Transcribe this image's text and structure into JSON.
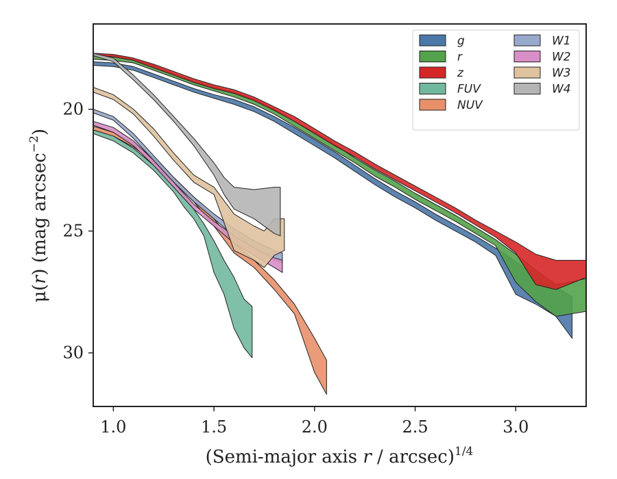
{
  "chart_data": {
    "type": "area",
    "xlabel": "(Semi-major axis r / arcsec)",
    "xlabel_pre": "(Semi-major axis ",
    "xlabel_var": "r",
    "xlabel_post": " / arcsec)",
    "xlabel_sup": "1/4",
    "ylabel_pre": "μ(",
    "ylabel_var": "r",
    "ylabel_post": ") (mag arcsec",
    "ylabel_sup": "−2",
    "ylabel_end": ")",
    "xlim": [
      0.9,
      3.35
    ],
    "ylim": [
      32.2,
      16.5
    ],
    "y_inverted": true,
    "xticks": [
      1.0,
      1.5,
      2.0,
      2.5,
      3.0
    ],
    "xtick_labels": [
      "1.0",
      "1.5",
      "2.0",
      "2.5",
      "3.0"
    ],
    "yticks": [
      20,
      25,
      30
    ],
    "ytick_labels": [
      "20",
      "25",
      "30"
    ],
    "grid": false,
    "legend_position": "top-right",
    "legend_columns": 2,
    "series": [
      {
        "name": "g",
        "color": "#4c78a8",
        "upper": [
          [
            0.9,
            18.05
          ],
          [
            1.0,
            18.1
          ],
          [
            1.1,
            18.25
          ],
          [
            1.2,
            18.55
          ],
          [
            1.3,
            18.85
          ],
          [
            1.4,
            19.15
          ],
          [
            1.5,
            19.4
          ],
          [
            1.6,
            19.6
          ],
          [
            1.7,
            19.9
          ],
          [
            1.8,
            20.3
          ],
          [
            1.9,
            20.75
          ],
          [
            2.0,
            21.25
          ],
          [
            2.1,
            21.75
          ],
          [
            2.2,
            22.3
          ],
          [
            2.3,
            22.85
          ],
          [
            2.4,
            23.35
          ],
          [
            2.5,
            23.8
          ],
          [
            2.6,
            24.3
          ],
          [
            2.7,
            24.75
          ],
          [
            2.8,
            25.2
          ],
          [
            2.9,
            25.7
          ],
          [
            3.0,
            26.25
          ],
          [
            3.1,
            26.9
          ],
          [
            3.2,
            27.3
          ],
          [
            3.28,
            27.7
          ]
        ],
        "lower": [
          [
            0.9,
            18.2
          ],
          [
            1.0,
            18.25
          ],
          [
            1.1,
            18.4
          ],
          [
            1.2,
            18.7
          ],
          [
            1.3,
            19.0
          ],
          [
            1.4,
            19.3
          ],
          [
            1.5,
            19.55
          ],
          [
            1.6,
            19.8
          ],
          [
            1.7,
            20.1
          ],
          [
            1.8,
            20.5
          ],
          [
            1.9,
            21.0
          ],
          [
            2.0,
            21.5
          ],
          [
            2.1,
            22.0
          ],
          [
            2.2,
            22.55
          ],
          [
            2.3,
            23.1
          ],
          [
            2.4,
            23.6
          ],
          [
            2.5,
            24.05
          ],
          [
            2.6,
            24.55
          ],
          [
            2.7,
            25.0
          ],
          [
            2.8,
            25.45
          ],
          [
            2.9,
            26.0
          ],
          [
            3.0,
            27.6
          ],
          [
            3.1,
            28.0
          ],
          [
            3.2,
            28.5
          ],
          [
            3.28,
            29.4
          ]
        ]
      },
      {
        "name": "r",
        "color": "#54a24b",
        "upper": [
          [
            0.9,
            17.75
          ],
          [
            1.0,
            17.8
          ],
          [
            1.1,
            17.95
          ],
          [
            1.2,
            18.2
          ],
          [
            1.3,
            18.55
          ],
          [
            1.4,
            18.85
          ],
          [
            1.5,
            19.1
          ],
          [
            1.6,
            19.3
          ],
          [
            1.7,
            19.6
          ],
          [
            1.8,
            20.0
          ],
          [
            1.9,
            20.5
          ],
          [
            2.0,
            20.95
          ],
          [
            2.1,
            21.45
          ],
          [
            2.2,
            22.0
          ],
          [
            2.3,
            22.5
          ],
          [
            2.4,
            22.95
          ],
          [
            2.5,
            23.45
          ],
          [
            2.6,
            23.9
          ],
          [
            2.7,
            24.35
          ],
          [
            2.8,
            24.85
          ],
          [
            2.9,
            25.35
          ],
          [
            3.0,
            25.95
          ],
          [
            3.1,
            26.6
          ],
          [
            3.2,
            27.2
          ],
          [
            3.35,
            26.95
          ]
        ],
        "lower": [
          [
            0.9,
            17.95
          ],
          [
            1.0,
            18.0
          ],
          [
            1.1,
            18.1
          ],
          [
            1.2,
            18.4
          ],
          [
            1.3,
            18.7
          ],
          [
            1.4,
            19.0
          ],
          [
            1.5,
            19.25
          ],
          [
            1.6,
            19.5
          ],
          [
            1.7,
            19.8
          ],
          [
            1.8,
            20.2
          ],
          [
            1.9,
            20.7
          ],
          [
            2.0,
            21.2
          ],
          [
            2.1,
            21.7
          ],
          [
            2.2,
            22.2
          ],
          [
            2.3,
            22.75
          ],
          [
            2.4,
            23.2
          ],
          [
            2.5,
            23.7
          ],
          [
            2.6,
            24.15
          ],
          [
            2.7,
            24.6
          ],
          [
            2.8,
            25.1
          ],
          [
            2.9,
            25.6
          ],
          [
            3.0,
            27.1
          ],
          [
            3.1,
            27.9
          ],
          [
            3.2,
            28.5
          ],
          [
            3.35,
            28.3
          ]
        ]
      },
      {
        "name": "z",
        "color": "#d62728",
        "upper": [
          [
            0.9,
            17.7
          ],
          [
            1.0,
            17.75
          ],
          [
            1.1,
            17.9
          ],
          [
            1.2,
            18.15
          ],
          [
            1.3,
            18.45
          ],
          [
            1.4,
            18.75
          ],
          [
            1.5,
            19.0
          ],
          [
            1.6,
            19.2
          ],
          [
            1.7,
            19.5
          ],
          [
            1.8,
            19.9
          ],
          [
            1.9,
            20.3
          ],
          [
            2.0,
            20.8
          ],
          [
            2.1,
            21.3
          ],
          [
            2.2,
            21.75
          ],
          [
            2.3,
            22.25
          ],
          [
            2.4,
            22.7
          ],
          [
            2.5,
            23.15
          ],
          [
            2.6,
            23.6
          ],
          [
            2.7,
            24.05
          ],
          [
            2.8,
            24.55
          ],
          [
            2.9,
            25.0
          ],
          [
            3.0,
            25.45
          ],
          [
            3.1,
            25.95
          ],
          [
            3.2,
            26.2
          ],
          [
            3.35,
            26.2
          ]
        ],
        "lower": [
          [
            0.9,
            17.8
          ],
          [
            1.0,
            17.85
          ],
          [
            1.1,
            18.0
          ],
          [
            1.2,
            18.3
          ],
          [
            1.3,
            18.6
          ],
          [
            1.4,
            18.9
          ],
          [
            1.5,
            19.15
          ],
          [
            1.6,
            19.35
          ],
          [
            1.7,
            19.65
          ],
          [
            1.8,
            20.05
          ],
          [
            1.9,
            20.5
          ],
          [
            2.0,
            21.0
          ],
          [
            2.1,
            21.5
          ],
          [
            2.2,
            21.95
          ],
          [
            2.3,
            22.45
          ],
          [
            2.4,
            22.9
          ],
          [
            2.5,
            23.35
          ],
          [
            2.6,
            23.8
          ],
          [
            2.7,
            24.25
          ],
          [
            2.8,
            24.75
          ],
          [
            2.9,
            25.25
          ],
          [
            3.0,
            25.9
          ],
          [
            3.1,
            27.2
          ],
          [
            3.2,
            27.4
          ],
          [
            3.35,
            26.9
          ]
        ]
      },
      {
        "name": "FUV",
        "color": "#72b89f",
        "upper": [
          [
            0.9,
            20.85
          ],
          [
            1.0,
            21.1
          ],
          [
            1.1,
            21.6
          ],
          [
            1.2,
            22.3
          ],
          [
            1.3,
            23.0
          ],
          [
            1.35,
            23.5
          ],
          [
            1.4,
            24.1
          ],
          [
            1.45,
            24.7
          ],
          [
            1.5,
            25.4
          ],
          [
            1.55,
            26.2
          ],
          [
            1.6,
            26.9
          ],
          [
            1.65,
            27.8
          ],
          [
            1.69,
            28.1
          ]
        ],
        "lower": [
          [
            0.9,
            21.0
          ],
          [
            1.0,
            21.3
          ],
          [
            1.1,
            21.8
          ],
          [
            1.2,
            22.5
          ],
          [
            1.3,
            23.4
          ],
          [
            1.35,
            24.0
          ],
          [
            1.4,
            24.5
          ],
          [
            1.45,
            25.2
          ],
          [
            1.5,
            26.7
          ],
          [
            1.55,
            27.6
          ],
          [
            1.6,
            29.0
          ],
          [
            1.65,
            29.8
          ],
          [
            1.69,
            30.2
          ]
        ]
      },
      {
        "name": "NUV",
        "color": "#e8906a",
        "upper": [
          [
            0.9,
            20.7
          ],
          [
            1.0,
            20.95
          ],
          [
            1.1,
            21.4
          ],
          [
            1.2,
            22.0
          ],
          [
            1.3,
            22.8
          ],
          [
            1.4,
            23.6
          ],
          [
            1.5,
            24.5
          ],
          [
            1.6,
            25.5
          ],
          [
            1.7,
            26.2
          ],
          [
            1.8,
            27.0
          ],
          [
            1.9,
            28.0
          ],
          [
            2.0,
            29.4
          ],
          [
            2.06,
            30.3
          ]
        ],
        "lower": [
          [
            0.9,
            20.85
          ],
          [
            1.0,
            21.1
          ],
          [
            1.1,
            21.55
          ],
          [
            1.2,
            22.2
          ],
          [
            1.3,
            23.0
          ],
          [
            1.4,
            23.8
          ],
          [
            1.5,
            24.8
          ],
          [
            1.6,
            25.9
          ],
          [
            1.7,
            26.5
          ],
          [
            1.8,
            27.4
          ],
          [
            1.9,
            28.4
          ],
          [
            2.0,
            30.8
          ],
          [
            2.06,
            31.7
          ]
        ]
      },
      {
        "name": "W1",
        "color": "#98a9cc",
        "upper": [
          [
            0.9,
            20.0
          ],
          [
            1.0,
            20.3
          ],
          [
            1.1,
            21.0
          ],
          [
            1.2,
            21.9
          ],
          [
            1.3,
            22.8
          ],
          [
            1.4,
            23.6
          ],
          [
            1.5,
            24.3
          ],
          [
            1.6,
            24.9
          ],
          [
            1.7,
            25.4
          ],
          [
            1.8,
            25.8
          ],
          [
            1.84,
            25.9
          ]
        ],
        "lower": [
          [
            0.9,
            20.15
          ],
          [
            1.0,
            20.45
          ],
          [
            1.1,
            21.2
          ],
          [
            1.2,
            22.1
          ],
          [
            1.3,
            23.0
          ],
          [
            1.4,
            23.8
          ],
          [
            1.5,
            24.5
          ],
          [
            1.6,
            25.2
          ],
          [
            1.7,
            25.7
          ],
          [
            1.8,
            26.2
          ],
          [
            1.84,
            26.3
          ]
        ]
      },
      {
        "name": "W2",
        "color": "#d88fc7",
        "upper": [
          [
            0.9,
            20.5
          ],
          [
            1.0,
            20.75
          ],
          [
            1.1,
            21.3
          ],
          [
            1.2,
            22.1
          ],
          [
            1.3,
            23.0
          ],
          [
            1.4,
            23.9
          ],
          [
            1.5,
            24.6
          ],
          [
            1.6,
            25.2
          ],
          [
            1.7,
            25.7
          ],
          [
            1.8,
            26.1
          ],
          [
            1.84,
            26.2
          ]
        ],
        "lower": [
          [
            0.9,
            20.65
          ],
          [
            1.0,
            20.95
          ],
          [
            1.1,
            21.5
          ],
          [
            1.2,
            22.3
          ],
          [
            1.3,
            23.2
          ],
          [
            1.4,
            24.1
          ],
          [
            1.5,
            24.8
          ],
          [
            1.6,
            25.5
          ],
          [
            1.7,
            26.0
          ],
          [
            1.8,
            26.5
          ],
          [
            1.84,
            26.7
          ]
        ]
      },
      {
        "name": "W3",
        "color": "#dfc29e",
        "upper": [
          [
            0.9,
            19.1
          ],
          [
            1.0,
            19.4
          ],
          [
            1.1,
            20.0
          ],
          [
            1.2,
            20.8
          ],
          [
            1.3,
            21.8
          ],
          [
            1.4,
            22.7
          ],
          [
            1.5,
            23.2
          ],
          [
            1.6,
            24.3
          ],
          [
            1.7,
            24.8
          ],
          [
            1.75,
            25.0
          ],
          [
            1.8,
            24.5
          ],
          [
            1.85,
            24.5
          ]
        ],
        "lower": [
          [
            0.9,
            19.3
          ],
          [
            1.0,
            19.6
          ],
          [
            1.1,
            20.2
          ],
          [
            1.2,
            21.1
          ],
          [
            1.3,
            22.1
          ],
          [
            1.4,
            23.0
          ],
          [
            1.5,
            23.5
          ],
          [
            1.6,
            25.8
          ],
          [
            1.7,
            26.2
          ],
          [
            1.75,
            26.5
          ],
          [
            1.8,
            26.0
          ],
          [
            1.85,
            25.8
          ]
        ]
      },
      {
        "name": "W4",
        "color": "#b5b5b5",
        "upper": [
          [
            0.9,
            17.7
          ],
          [
            1.0,
            17.9
          ],
          [
            1.1,
            18.6
          ],
          [
            1.2,
            19.4
          ],
          [
            1.3,
            20.3
          ],
          [
            1.4,
            21.2
          ],
          [
            1.5,
            22.2
          ],
          [
            1.55,
            22.8
          ],
          [
            1.6,
            23.2
          ],
          [
            1.7,
            23.3
          ],
          [
            1.8,
            23.2
          ],
          [
            1.83,
            23.2
          ]
        ],
        "lower": [
          [
            0.9,
            17.8
          ],
          [
            1.0,
            18.05
          ],
          [
            1.1,
            18.8
          ],
          [
            1.2,
            19.6
          ],
          [
            1.3,
            20.5
          ],
          [
            1.4,
            21.5
          ],
          [
            1.5,
            22.7
          ],
          [
            1.55,
            23.5
          ],
          [
            1.6,
            24.1
          ],
          [
            1.7,
            24.5
          ],
          [
            1.8,
            25.1
          ],
          [
            1.83,
            25.2
          ]
        ]
      }
    ]
  }
}
